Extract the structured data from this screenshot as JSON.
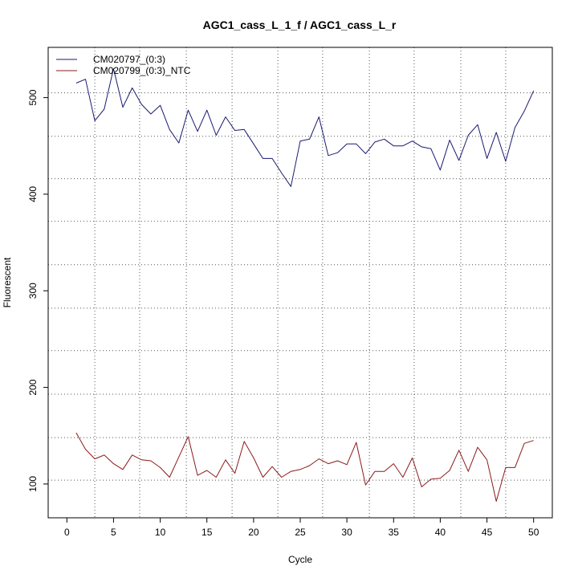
{
  "chart_data": {
    "type": "line",
    "title": "AGC1_cass_L_1_f / AGC1_cass_L_r",
    "xlabel": "Cycle",
    "ylabel": "Fluorescent",
    "xlim": [
      -2,
      52
    ],
    "ylim": [
      65,
      552
    ],
    "x_ticks": [
      0,
      5,
      10,
      15,
      20,
      25,
      30,
      35,
      40,
      45,
      50
    ],
    "y_ticks": [
      100,
      200,
      300,
      400,
      500
    ],
    "grid_x": [
      3,
      7.8,
      12.8,
      17.7,
      22.6,
      27.4,
      32.4,
      37.2,
      42.2,
      47
    ],
    "grid_y": [
      104,
      148,
      193,
      238,
      282,
      327,
      372,
      416,
      460,
      505
    ],
    "legend_position": "top-left",
    "x": [
      1,
      2,
      3,
      4,
      5,
      6,
      7,
      8,
      9,
      10,
      11,
      12,
      13,
      14,
      15,
      16,
      17,
      18,
      19,
      20,
      21,
      22,
      23,
      24,
      25,
      26,
      27,
      28,
      29,
      30,
      31,
      32,
      33,
      34,
      35,
      36,
      37,
      38,
      39,
      40,
      41,
      42,
      43,
      44,
      45,
      46,
      47,
      48,
      49,
      50
    ],
    "series": [
      {
        "name": "CM020797_(0:3)",
        "color": "#191970",
        "values": [
          515,
          519,
          476,
          488,
          530,
          490,
          510,
          493,
          483,
          492,
          467,
          453,
          487,
          465,
          487,
          461,
          480,
          466,
          467,
          452,
          437,
          437,
          422,
          408,
          455,
          457,
          480,
          440,
          443,
          452,
          452,
          442,
          454,
          457,
          450,
          450,
          455,
          449,
          447,
          425,
          456,
          435,
          461,
          472,
          437,
          464,
          434,
          469,
          486,
          507
        ]
      },
      {
        "name": "CM020799_(0:3)_NTC",
        "color": "#8b1a1a",
        "values": [
          153,
          136,
          126,
          130,
          121,
          115,
          130,
          125,
          124,
          117,
          107,
          128,
          149,
          109,
          114,
          107,
          125,
          111,
          144,
          127,
          107,
          118,
          107,
          113,
          115,
          119,
          126,
          121,
          124,
          120,
          143,
          99,
          113,
          113,
          121,
          107,
          127,
          97,
          105,
          106,
          114,
          135,
          113,
          138,
          125,
          82,
          117,
          117,
          142,
          145
        ]
      }
    ]
  }
}
